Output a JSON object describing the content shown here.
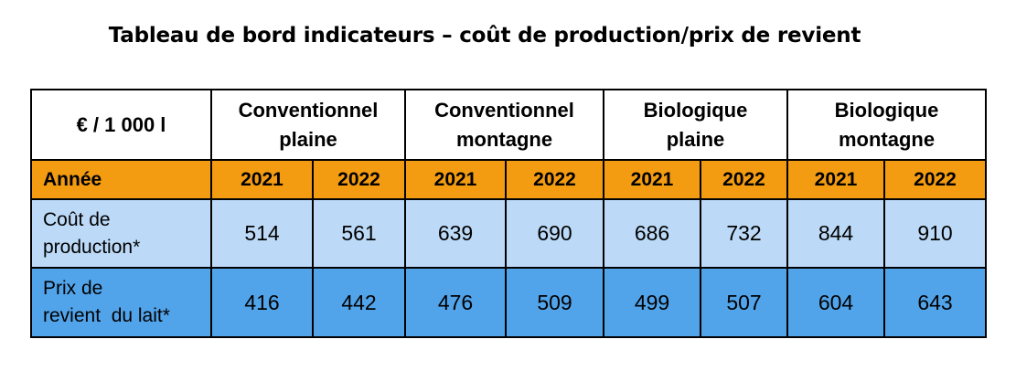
{
  "title": "Tableau de bord indicateurs – coût de production/prix de revient",
  "table": {
    "unit_label": "€ / 1 000 l",
    "groups": [
      {
        "line1": "Conventionnel",
        "line2": "plaine"
      },
      {
        "line1": "Conventionnel",
        "line2": "montagne"
      },
      {
        "line1": "Biologique",
        "line2": "plaine"
      },
      {
        "line1": "Biologique",
        "line2": "montagne"
      }
    ],
    "year_label": "Année",
    "years": [
      "2021",
      "2022",
      "2021",
      "2022",
      "2021",
      "2022",
      "2021",
      "2022"
    ],
    "rows": [
      {
        "label_line1": "Coût de",
        "label_line2": "production*",
        "values": [
          "514",
          "561",
          "639",
          "690",
          "686",
          "732",
          "844",
          "910"
        ]
      },
      {
        "label_line1": "Prix de",
        "label_line2": "revient  du lait*",
        "values": [
          "416",
          "442",
          "476",
          "509",
          "499",
          "507",
          "604",
          "643"
        ]
      }
    ],
    "colors": {
      "year_row": "#f39c12",
      "cost_row": "#bcdaf7",
      "price_row": "#52a4ea",
      "border": "#000000"
    }
  }
}
